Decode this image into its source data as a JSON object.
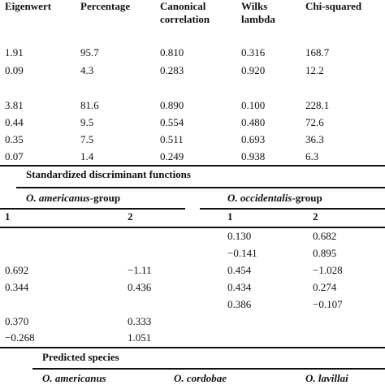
{
  "header": {
    "eigenwert": "Eigenwert",
    "percentage": "Percentage",
    "canonical_1": "Canonical",
    "canonical_2": "correlation",
    "wilks_1": "Wilks",
    "wilks_2": "lambda",
    "chi": "Chi-squared"
  },
  "top_rows": [
    [
      "1.91",
      "95.7",
      "0.810",
      "0.316",
      "168.7"
    ],
    [
      "0.09",
      "4.3",
      "0.283",
      "0.920",
      "12.2"
    ],
    [
      "3.81",
      "81.6",
      "0.890",
      "0.100",
      "228.1"
    ],
    [
      "0.44",
      "9.5",
      "0.554",
      "0.480",
      "72.6"
    ],
    [
      "0.35",
      "7.5",
      "0.511",
      "0.693",
      "36.3"
    ],
    [
      "0.07",
      "1.4",
      "0.249",
      "0.938",
      "6.3"
    ]
  ],
  "std_title": "Standardized discriminant functions",
  "groups": {
    "americanus_italic": "O. americanus",
    "americanus_suffix": "-group",
    "occidentalis_italic": "O. occidentalis",
    "occidentalis_suffix": "-group"
  },
  "func_headers": {
    "am_1": "1",
    "am_2": "2",
    "oc_1": "1",
    "oc_2": "2"
  },
  "std_rows": [
    [
      "",
      "",
      "0.130",
      "0.682"
    ],
    [
      "",
      "",
      "−0.141",
      "0.895"
    ],
    [
      "0.692",
      "−1.11",
      "0.454",
      "−1.028"
    ],
    [
      "0.344",
      "0.436",
      "0.434",
      "0.274"
    ],
    [
      "",
      "",
      "0.386",
      "−0.107"
    ],
    [
      "0.370",
      "0.333",
      "",
      ""
    ],
    [
      "−0.268",
      "1.051",
      "",
      ""
    ]
  ],
  "predicted_title": "Predicted species",
  "species": [
    "O. americanus",
    "O. cordobae",
    "O. lavillai"
  ]
}
